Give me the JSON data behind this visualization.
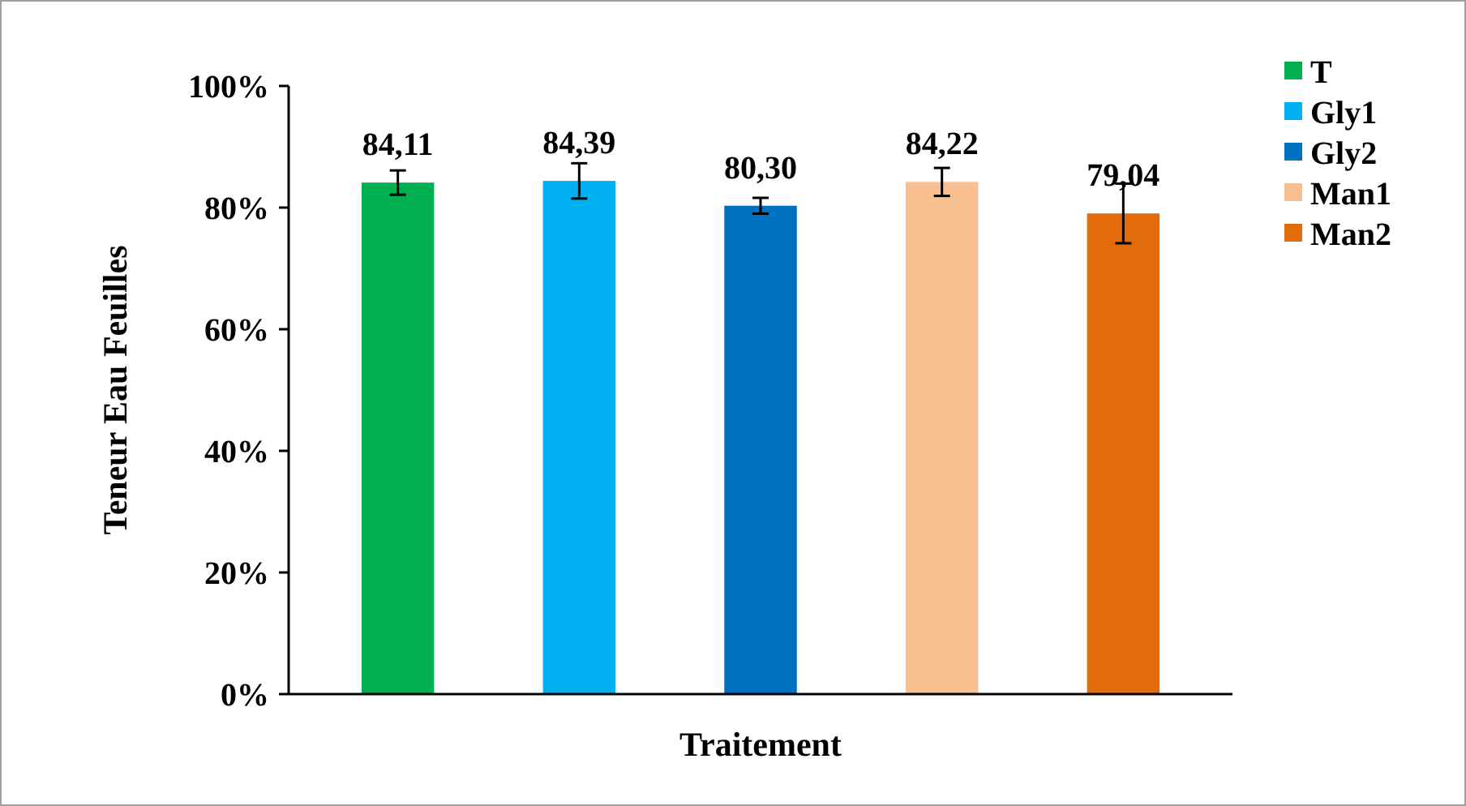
{
  "chart_data": {
    "type": "bar",
    "xlabel": "Traitement",
    "ylabel": "Teneur Eau Feuilles",
    "categories": [
      null
    ],
    "series": [
      {
        "name": "T",
        "color": "#00b050",
        "values": [
          84.11
        ],
        "errors": [
          2.0
        ],
        "value_labels": [
          "84,11"
        ]
      },
      {
        "name": "Gly1",
        "color": "#00b0f0",
        "values": [
          84.39
        ],
        "errors": [
          2.9
        ],
        "value_labels": [
          "84,39"
        ]
      },
      {
        "name": "Gly2",
        "color": "#0070c0",
        "values": [
          80.3
        ],
        "errors": [
          1.3
        ],
        "value_labels": [
          "80,30"
        ]
      },
      {
        "name": "Man1",
        "color": "#f8c090",
        "values": [
          84.22
        ],
        "errors": [
          2.3
        ],
        "value_labels": [
          "84,22"
        ]
      },
      {
        "name": "Man2",
        "color": "#e36c0a",
        "values": [
          79.04
        ],
        "errors": [
          4.9
        ],
        "value_labels": [
          "79,04"
        ]
      }
    ],
    "ylim": [
      0,
      100
    ],
    "yticks": [
      {
        "value": 0,
        "label": "0%"
      },
      {
        "value": 20,
        "label": "20%"
      },
      {
        "value": 40,
        "label": "40%"
      },
      {
        "value": 60,
        "label": "60%"
      },
      {
        "value": 80,
        "label": "80%"
      },
      {
        "value": 100,
        "label": "100%"
      }
    ],
    "tick_labels": "y",
    "legend": "right",
    "grid": false
  }
}
